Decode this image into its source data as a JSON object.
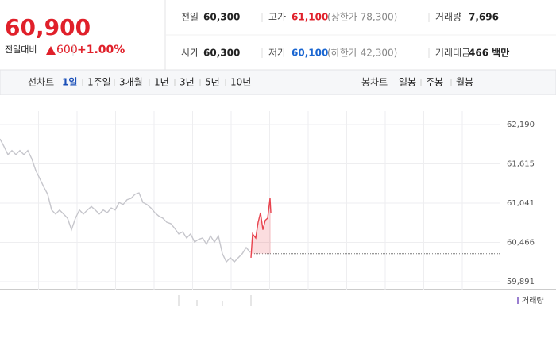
{
  "quote": {
    "price": "60,900",
    "change_label": "전일대비",
    "change": "600",
    "change_rate": "+1.00%"
  },
  "info": [
    {
      "label": "전일",
      "value": "60,300"
    },
    {
      "label": "고가",
      "value": "61,100",
      "note": "(상한가 78,300)"
    },
    {
      "label": "거래량",
      "value": "7,696"
    },
    {
      "label": "시가",
      "value": "60,300"
    },
    {
      "label": "저가",
      "value": "60,100",
      "note": "(하한가 42,300)"
    },
    {
      "label": "거래대금",
      "value": "466 백만"
    }
  ],
  "toolbar": {
    "line_label": "선차트",
    "periods": [
      "1일",
      "1주일",
      "3개월",
      "1년",
      "3년",
      "5년",
      "10년"
    ],
    "active_period": 0,
    "candle_label": "봉차트",
    "candle_periods": [
      "일봉",
      "주봉",
      "월봉"
    ]
  },
  "chart_data": {
    "type": "line",
    "xlim": [
      0,
      126
    ],
    "ylim": [
      59891,
      62190
    ],
    "yticks": [
      {
        "value": 62190,
        "label": "62,190"
      },
      {
        "value": 61615,
        "label": "61,615"
      },
      {
        "value": 61041,
        "label": "61,041"
      },
      {
        "value": 60466,
        "label": "60,466"
      },
      {
        "value": 59891,
        "label": "59,891"
      }
    ],
    "grid": true,
    "baseline": 60300,
    "series": [
      {
        "color": "#c6c6cc",
        "fill": false,
        "x": [
          0,
          1,
          2,
          3,
          4,
          5,
          6,
          7,
          8,
          9,
          10,
          11,
          12,
          13,
          14,
          15,
          16,
          17,
          18,
          19,
          20,
          21,
          22,
          23,
          24,
          25,
          26,
          27,
          28,
          29,
          30,
          31,
          32,
          33,
          34,
          35,
          36,
          37,
          38,
          39,
          40,
          41,
          42,
          43,
          44,
          45,
          46,
          47,
          48,
          49,
          50,
          51,
          52,
          53,
          54,
          55,
          56,
          57,
          58,
          59,
          60,
          61,
          62,
          63
        ],
        "values": [
          61980,
          61870,
          61750,
          61810,
          61750,
          61810,
          61750,
          61810,
          61690,
          61520,
          61400,
          61280,
          61170,
          60940,
          60880,
          60940,
          60880,
          60820,
          60650,
          60820,
          60940,
          60880,
          60940,
          60990,
          60940,
          60880,
          60940,
          60900,
          60970,
          60940,
          61050,
          61020,
          61090,
          61110,
          61170,
          61190,
          61050,
          61020,
          60970,
          60900,
          60850,
          60820,
          60760,
          60740,
          60670,
          60590,
          60620,
          60530,
          60590,
          60470,
          60510,
          60530,
          60440,
          60560,
          60470,
          60560,
          60300,
          60180,
          60240,
          60180,
          60240,
          60300,
          60390,
          60320
        ]
      },
      {
        "color": "#e8434e",
        "fill": true,
        "x": [
          63.2,
          63.6,
          64.4,
          65,
          65.6,
          66.2,
          66.8,
          67.4,
          68,
          68.2
        ],
        "values": [
          60240,
          60590,
          60530,
          60760,
          60900,
          60650,
          60790,
          60820,
          61110,
          60900
        ]
      }
    ],
    "legend": "거래량"
  }
}
